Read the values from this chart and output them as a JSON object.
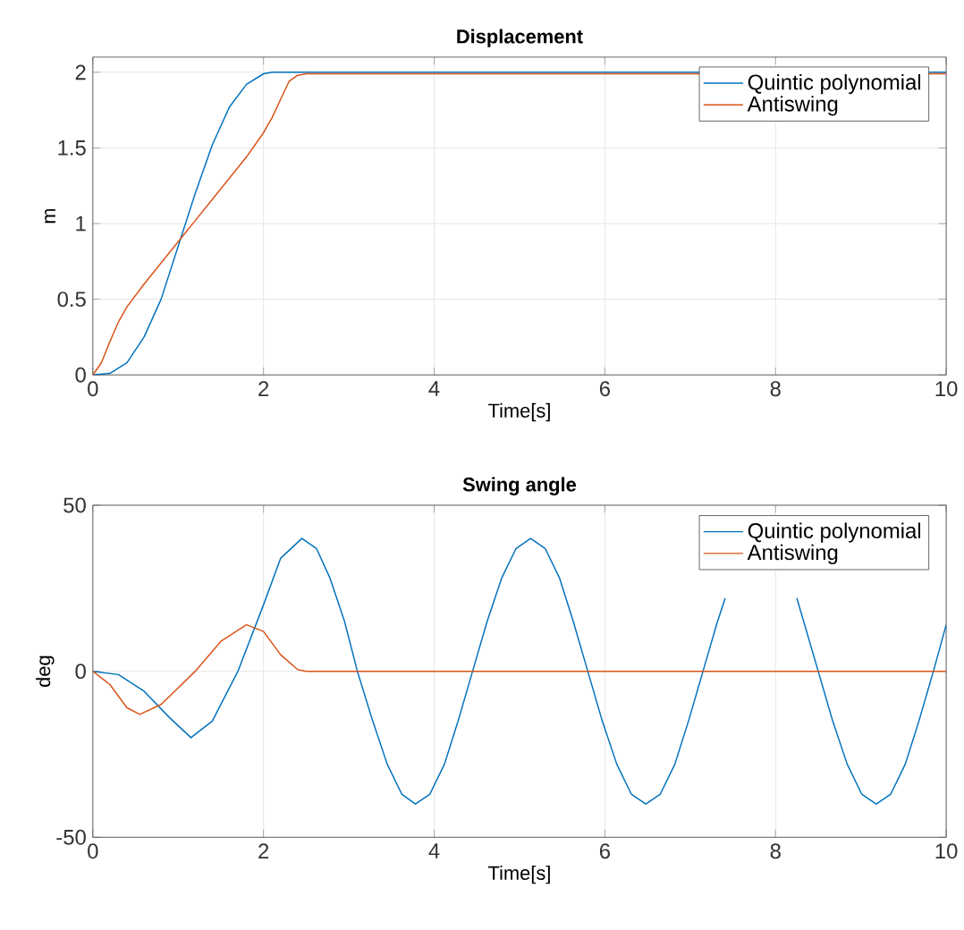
{
  "chart_data": [
    {
      "type": "line",
      "title": "Displacement",
      "xlabel": "Time[s]",
      "ylabel": "m",
      "xlim": [
        0,
        10
      ],
      "ylim": [
        0,
        2.1
      ],
      "xticks": [
        0,
        2,
        4,
        6,
        8,
        10
      ],
      "yticks": [
        0,
        0.5,
        1,
        1.5,
        2
      ],
      "grid": true,
      "legend": "top right",
      "line_style": "solid",
      "marker": "none",
      "series": [
        {
          "name": "Quintic polynomial",
          "color": "#0072bd",
          "x": [
            0,
            0.2,
            0.4,
            0.6,
            0.8,
            1.0,
            1.2,
            1.4,
            1.6,
            1.8,
            2.0,
            2.1,
            10
          ],
          "values": [
            0,
            0.01,
            0.08,
            0.25,
            0.5,
            0.85,
            1.2,
            1.52,
            1.77,
            1.92,
            1.99,
            2,
            2
          ]
        },
        {
          "name": "Antiswing",
          "color": "#d95319",
          "x": [
            0,
            0.1,
            0.2,
            0.3,
            0.4,
            0.6,
            0.8,
            1.0,
            1.2,
            1.4,
            1.6,
            1.8,
            2.0,
            2.1,
            2.2,
            2.3,
            2.4,
            2.5,
            10
          ],
          "values": [
            0,
            0.08,
            0.22,
            0.35,
            0.45,
            0.6,
            0.74,
            0.88,
            1.02,
            1.16,
            1.3,
            1.44,
            1.6,
            1.7,
            1.82,
            1.94,
            1.98,
            1.99,
            1.99
          ]
        }
      ]
    },
    {
      "type": "line",
      "title": "Swing angle",
      "xlabel": "Time[s]",
      "ylabel": "deg",
      "xlim": [
        0,
        10
      ],
      "ylim": [
        -50,
        50
      ],
      "xticks": [
        0,
        2,
        4,
        6,
        8,
        10
      ],
      "yticks": [
        -50,
        0,
        50
      ],
      "grid": true,
      "legend": "top right",
      "line_style": "solid",
      "marker": "none",
      "series": [
        {
          "name": "Quintic polynomial",
          "color": "#0072bd",
          "x": [
            0,
            0.3,
            0.6,
            0.9,
            1.15,
            1.4,
            1.7,
            2.0,
            2.2,
            2.45,
            2.62,
            2.78,
            2.95,
            3.1,
            3.28,
            3.45,
            3.62,
            3.78,
            3.95,
            4.12,
            4.28,
            4.45,
            4.62,
            4.79,
            4.96,
            5.13,
            5.3,
            5.47,
            5.63,
            5.8,
            5.97,
            6.14,
            6.31,
            6.48,
            6.65,
            6.82,
            6.98,
            7.15,
            7.32,
            7.41,
            7.6,
            7.83,
            8.05,
            8.25,
            8.33,
            8.5,
            8.67,
            8.84,
            9.01,
            9.18,
            9.35,
            9.52,
            9.68,
            9.85,
            10
          ],
          "values": [
            0,
            -1,
            -6,
            -14,
            -20,
            -15,
            0,
            20,
            34,
            40,
            37,
            28,
            15,
            0,
            -15,
            -28,
            -37,
            -40,
            -37,
            -28,
            -15,
            0,
            15,
            28,
            37,
            40,
            37,
            28,
            15,
            0,
            -15,
            -28,
            -37,
            -40,
            -37,
            -28,
            -15,
            0,
            15,
            22,
            null,
            null,
            null,
            22,
            15,
            0,
            -15,
            -28,
            -37,
            -40,
            -37,
            -28,
            -15,
            0,
            14
          ]
        },
        {
          "name": "Antiswing",
          "color": "#d95319",
          "x": [
            0,
            0.2,
            0.4,
            0.55,
            0.8,
            1.2,
            1.5,
            1.8,
            2.0,
            2.2,
            2.4,
            2.5,
            10
          ],
          "values": [
            0,
            -4,
            -11,
            -13,
            -10,
            0,
            9,
            14,
            12,
            5,
            0.5,
            0,
            0
          ]
        }
      ]
    }
  ]
}
